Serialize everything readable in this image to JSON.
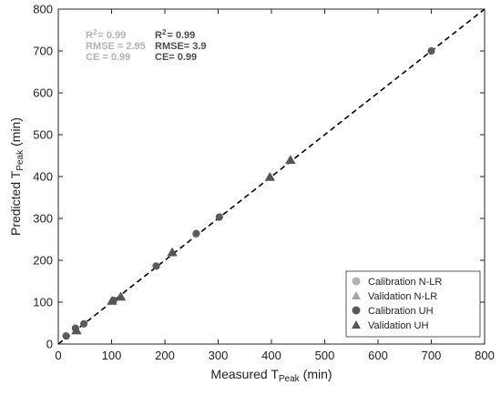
{
  "chart_data": {
    "type": "scatter",
    "title": "",
    "xlabel": {
      "main": "Measured T",
      "sub": "Peak",
      "unit": "(min)"
    },
    "ylabel": {
      "main": "Predicted T",
      "sub": "Peak",
      "unit": "(min)"
    },
    "xlim": [
      0,
      800
    ],
    "ylim": [
      0,
      800
    ],
    "xticks": [
      0,
      100,
      200,
      300,
      400,
      500,
      600,
      700,
      800
    ],
    "yticks": [
      0,
      100,
      200,
      300,
      400,
      500,
      600,
      700,
      800
    ],
    "grid": false,
    "reference_line": {
      "style": "dashed",
      "from": [
        0,
        0
      ],
      "to": [
        800,
        800
      ]
    },
    "legend_position": "bottom-right",
    "series": [
      {
        "name": "Calibration N-LR",
        "marker": "circle",
        "color": "#b3b3b3",
        "points": [
          [
            14,
            20
          ],
          [
            33,
            37
          ],
          [
            48,
            49
          ],
          [
            103,
            103
          ],
          [
            183,
            187
          ],
          [
            258,
            262
          ],
          [
            303,
            304
          ],
          [
            700,
            700
          ]
        ]
      },
      {
        "name": "Validation N-LR",
        "marker": "triangle",
        "color": "#a6a6a6",
        "points": [
          [
            35,
            32
          ],
          [
            100,
            102
          ],
          [
            118,
            112
          ],
          [
            213,
            218
          ],
          [
            398,
            398
          ],
          [
            435,
            440
          ]
        ]
      },
      {
        "name": "Calibration UH",
        "marker": "circle",
        "color": "#5a5a5a",
        "points": [
          [
            15,
            19
          ],
          [
            32,
            38
          ],
          [
            48,
            48
          ],
          [
            104,
            104
          ],
          [
            184,
            186
          ],
          [
            259,
            264
          ],
          [
            302,
            303
          ],
          [
            700,
            700
          ]
        ]
      },
      {
        "name": "Validation UH",
        "marker": "triangle",
        "color": "#555555",
        "points": [
          [
            34,
            32
          ],
          [
            101,
            103
          ],
          [
            117,
            113
          ],
          [
            214,
            219
          ],
          [
            397,
            399
          ],
          [
            436,
            439
          ]
        ]
      }
    ],
    "stats": [
      {
        "color": "#b3b3b3",
        "r2_label": "R",
        "r2_value": "= 0.99",
        "rmse": "RMSE = 2.95",
        "ce": "CE = 0.99"
      },
      {
        "color": "#4d4d4d",
        "r2_label": "R",
        "r2_value": "= 0.99",
        "rmse": "RMSE= 3.9",
        "ce": "CE= 0.99"
      }
    ]
  }
}
